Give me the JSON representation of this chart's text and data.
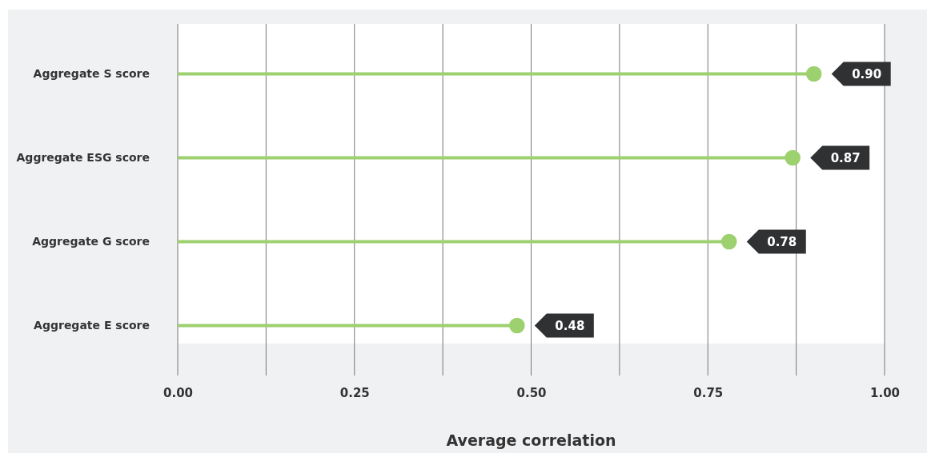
{
  "chart_data": {
    "type": "lollipop",
    "orientation": "horizontal",
    "xlabel": "Average correlation",
    "categories": [
      "Aggregate S score",
      "Aggregate ESG score",
      "Aggregate G score",
      "Aggregate E score"
    ],
    "values": [
      0.9,
      0.87,
      0.78,
      0.48
    ],
    "value_labels": [
      "0.90",
      "0.87",
      "0.78",
      "0.48"
    ],
    "color": "#9dd06f",
    "xlim": [
      0,
      1
    ],
    "xticks": [
      {
        "value": 0,
        "label": "0.00"
      },
      {
        "value": 0.125,
        "label": null
      },
      {
        "value": 0.25,
        "label": "0.25"
      },
      {
        "value": 0.375,
        "label": null
      },
      {
        "value": 0.5,
        "label": "0.50"
      },
      {
        "value": 0.625,
        "label": null
      },
      {
        "value": 0.75,
        "label": "0.75"
      },
      {
        "value": 0.875,
        "label": null
      },
      {
        "value": 1,
        "label": "1.00"
      }
    ],
    "grid": "x",
    "marker": "circle"
  }
}
